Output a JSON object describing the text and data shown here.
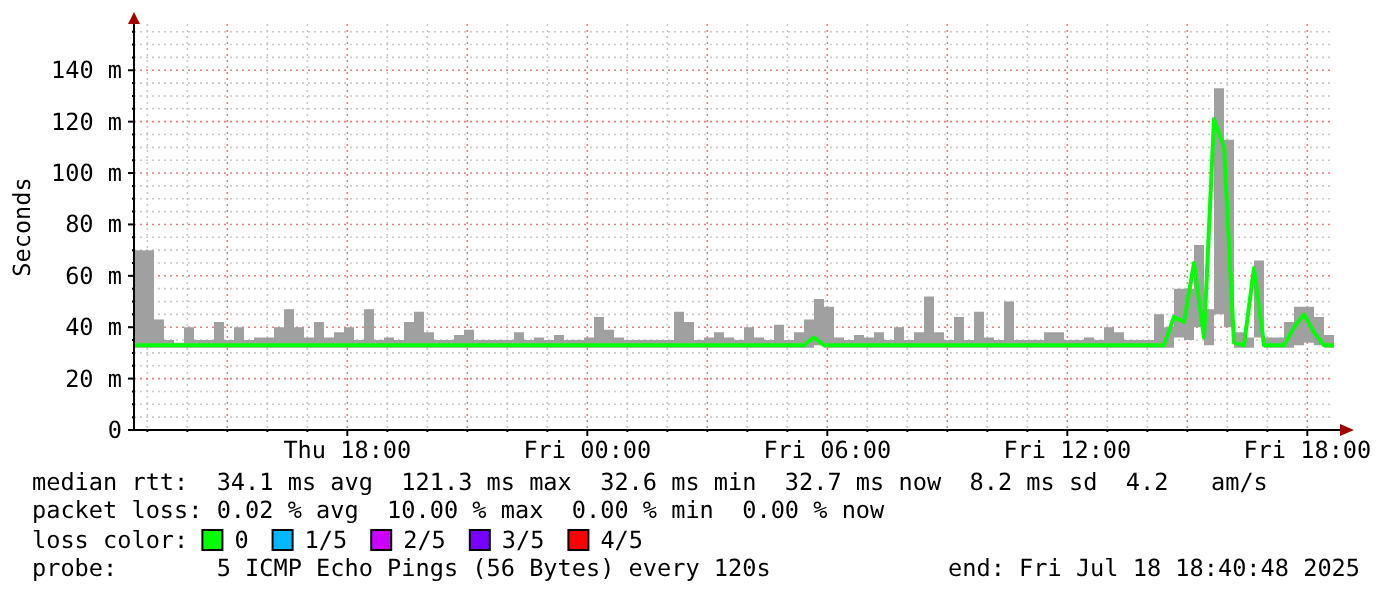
{
  "chart_data": {
    "type": "line",
    "ylabel": "Seconds",
    "legend_title": "loss color:",
    "legend": "bottom",
    "grid": true,
    "marker": "none",
    "line_style": "solid",
    "xlim": [
      "2025-07-17T12:40",
      "2025-07-18T18:40"
    ],
    "ylim": [
      0,
      158
    ],
    "yticks": [
      0,
      {
        "value": 5,
        "label": null
      },
      {
        "value": 10,
        "label": null
      },
      {
        "value": 15,
        "label": null
      },
      {
        "value": 20,
        "label": "20 m"
      },
      {
        "value": 25,
        "label": null
      },
      {
        "value": 30,
        "label": null
      },
      {
        "value": 35,
        "label": null
      },
      {
        "value": 40,
        "label": "40 m"
      },
      {
        "value": 45,
        "label": null
      },
      {
        "value": 50,
        "label": null
      },
      {
        "value": 55,
        "label": null
      },
      {
        "value": 60,
        "label": "60 m"
      },
      {
        "value": 65,
        "label": null
      },
      {
        "value": 70,
        "label": null
      },
      {
        "value": 75,
        "label": null
      },
      {
        "value": 80,
        "label": "80 m"
      },
      {
        "value": 85,
        "label": null
      },
      {
        "value": 90,
        "label": null
      },
      {
        "value": 95,
        "label": null
      },
      {
        "value": 100,
        "label": "100 m"
      },
      {
        "value": 105,
        "label": null
      },
      {
        "value": 110,
        "label": null
      },
      {
        "value": 115,
        "label": null
      },
      {
        "value": 120,
        "label": "120 m"
      },
      {
        "value": 125,
        "label": null
      },
      {
        "value": 130,
        "label": null
      },
      {
        "value": 135,
        "label": null
      },
      {
        "value": 140,
        "label": "140 m"
      },
      {
        "value": 145,
        "label": null
      },
      {
        "value": 150,
        "label": null
      },
      {
        "value": 155,
        "label": null
      }
    ],
    "xticks": [
      {
        "value": "2025-07-17T13:00",
        "label": null
      },
      {
        "value": "2025-07-17T14:00",
        "label": null
      },
      {
        "value": "2025-07-17T15:00",
        "label": null
      },
      {
        "value": "2025-07-17T16:00",
        "label": null
      },
      {
        "value": "2025-07-17T17:00",
        "label": null
      },
      {
        "value": "2025-07-17T18:00",
        "label": "Thu 18:00"
      },
      {
        "value": "2025-07-17T19:00",
        "label": null
      },
      {
        "value": "2025-07-17T20:00",
        "label": null
      },
      {
        "value": "2025-07-17T21:00",
        "label": null
      },
      {
        "value": "2025-07-17T22:00",
        "label": null
      },
      {
        "value": "2025-07-17T23:00",
        "label": null
      },
      {
        "value": "2025-07-18T00:00",
        "label": "Fri 00:00"
      },
      {
        "value": "2025-07-18T01:00",
        "label": null
      },
      {
        "value": "2025-07-18T02:00",
        "label": null
      },
      {
        "value": "2025-07-18T03:00",
        "label": null
      },
      {
        "value": "2025-07-18T04:00",
        "label": null
      },
      {
        "value": "2025-07-18T05:00",
        "label": null
      },
      {
        "value": "2025-07-18T06:00",
        "label": "Fri 06:00"
      },
      {
        "value": "2025-07-18T07:00",
        "label": null
      },
      {
        "value": "2025-07-18T08:00",
        "label": null
      },
      {
        "value": "2025-07-18T09:00",
        "label": null
      },
      {
        "value": "2025-07-18T10:00",
        "label": null
      },
      {
        "value": "2025-07-18T11:00",
        "label": null
      },
      {
        "value": "2025-07-18T12:00",
        "label": "Fri 12:00"
      },
      {
        "value": "2025-07-18T13:00",
        "label": null
      },
      {
        "value": "2025-07-18T14:00",
        "label": null
      },
      {
        "value": "2025-07-18T15:00",
        "label": null
      },
      {
        "value": "2025-07-18T16:00",
        "label": null
      },
      {
        "value": "2025-07-18T17:00",
        "label": null
      },
      {
        "value": "2025-07-18T18:00",
        "label": "Fri 18:00"
      }
    ],
    "x": [
      "2025-07-17T12:40",
      "2025-07-17T12:55",
      "2025-07-17T13:10",
      "2025-07-17T13:25",
      "2025-07-17T13:40",
      "2025-07-17T13:55",
      "2025-07-17T14:10",
      "2025-07-17T14:25",
      "2025-07-17T14:40",
      "2025-07-17T14:55",
      "2025-07-17T15:10",
      "2025-07-17T15:25",
      "2025-07-17T15:40",
      "2025-07-17T15:55",
      "2025-07-17T16:10",
      "2025-07-17T16:25",
      "2025-07-17T16:40",
      "2025-07-17T16:55",
      "2025-07-17T17:10",
      "2025-07-17T17:25",
      "2025-07-17T17:40",
      "2025-07-17T17:55",
      "2025-07-17T18:10",
      "2025-07-17T18:25",
      "2025-07-17T18:40",
      "2025-07-17T18:55",
      "2025-07-17T19:10",
      "2025-07-17T19:25",
      "2025-07-17T19:40",
      "2025-07-17T19:55",
      "2025-07-17T20:10",
      "2025-07-17T20:25",
      "2025-07-17T20:40",
      "2025-07-17T20:55",
      "2025-07-17T21:10",
      "2025-07-17T21:25",
      "2025-07-17T21:40",
      "2025-07-17T21:55",
      "2025-07-17T22:10",
      "2025-07-17T22:25",
      "2025-07-17T22:40",
      "2025-07-17T22:55",
      "2025-07-17T23:10",
      "2025-07-17T23:25",
      "2025-07-17T23:40",
      "2025-07-17T23:55",
      "2025-07-18T00:10",
      "2025-07-18T00:25",
      "2025-07-18T00:40",
      "2025-07-18T00:55",
      "2025-07-18T01:10",
      "2025-07-18T01:25",
      "2025-07-18T01:40",
      "2025-07-18T01:55",
      "2025-07-18T02:10",
      "2025-07-18T02:25",
      "2025-07-18T02:40",
      "2025-07-18T02:55",
      "2025-07-18T03:10",
      "2025-07-18T03:25",
      "2025-07-18T03:40",
      "2025-07-18T03:55",
      "2025-07-18T04:10",
      "2025-07-18T04:25",
      "2025-07-18T04:40",
      "2025-07-18T04:55",
      "2025-07-18T05:10",
      "2025-07-18T05:25",
      "2025-07-18T05:40",
      "2025-07-18T05:55",
      "2025-07-18T06:10",
      "2025-07-18T06:25",
      "2025-07-18T06:40",
      "2025-07-18T06:55",
      "2025-07-18T07:10",
      "2025-07-18T07:25",
      "2025-07-18T07:40",
      "2025-07-18T07:55",
      "2025-07-18T08:10",
      "2025-07-18T08:25",
      "2025-07-18T08:40",
      "2025-07-18T08:55",
      "2025-07-18T09:10",
      "2025-07-18T09:25",
      "2025-07-18T09:40",
      "2025-07-18T09:55",
      "2025-07-18T10:10",
      "2025-07-18T10:25",
      "2025-07-18T10:40",
      "2025-07-18T10:55",
      "2025-07-18T11:10",
      "2025-07-18T11:25",
      "2025-07-18T11:40",
      "2025-07-18T11:55",
      "2025-07-18T12:10",
      "2025-07-18T12:25",
      "2025-07-18T12:40",
      "2025-07-18T12:55",
      "2025-07-18T13:10",
      "2025-07-18T13:25",
      "2025-07-18T13:40",
      "2025-07-18T13:55",
      "2025-07-18T14:10",
      "2025-07-18T14:25",
      "2025-07-18T14:40",
      "2025-07-18T14:55",
      "2025-07-18T15:10",
      "2025-07-18T15:25",
      "2025-07-18T15:40",
      "2025-07-18T15:55",
      "2025-07-18T16:10",
      "2025-07-18T16:25",
      "2025-07-18T16:40",
      "2025-07-18T16:55",
      "2025-07-18T17:10",
      "2025-07-18T17:25",
      "2025-07-18T17:40",
      "2025-07-18T17:55",
      "2025-07-18T18:10",
      "2025-07-18T18:25",
      "2025-07-18T18:40"
    ],
    "series": [
      {
        "name": "0",
        "color": "#00ff00",
        "values": [
          33,
          33,
          33,
          33,
          33,
          33,
          33,
          33,
          33,
          33,
          33,
          33,
          33,
          33,
          33,
          33,
          33,
          33,
          33,
          33,
          33,
          33,
          33,
          33,
          33,
          33,
          33,
          33,
          33,
          33,
          33,
          33,
          33,
          33,
          33,
          33,
          33,
          33,
          33,
          33,
          33,
          33,
          33,
          33,
          33,
          33,
          33,
          33,
          33,
          33,
          33,
          33,
          33,
          33,
          33,
          33,
          33,
          33,
          33,
          33,
          33,
          33,
          33,
          33,
          33,
          33,
          33,
          33,
          36,
          33,
          33,
          33,
          33,
          33,
          33,
          33,
          33,
          33,
          33,
          33,
          33,
          33,
          33,
          33,
          33,
          33,
          33,
          33,
          33,
          33,
          33,
          33,
          33,
          33,
          33,
          33,
          33,
          33,
          33,
          33,
          33,
          33,
          33,
          33,
          44,
          42,
          65,
          36,
          121,
          110,
          34,
          33,
          63,
          33,
          33,
          33,
          40,
          45,
          38,
          33,
          33
        ],
        "lower": [
          32,
          32,
          32,
          32,
          32,
          32,
          32,
          32,
          32,
          32,
          32,
          32,
          32,
          32,
          32,
          32,
          32,
          32,
          32,
          32,
          32,
          32,
          32,
          32,
          32,
          32,
          32,
          32,
          32,
          32,
          32,
          32,
          32,
          32,
          32,
          32,
          32,
          32,
          32,
          32,
          32,
          32,
          32,
          32,
          32,
          32,
          32,
          32,
          32,
          32,
          32,
          32,
          32,
          32,
          32,
          32,
          32,
          32,
          32,
          32,
          32,
          32,
          32,
          32,
          32,
          32,
          32,
          32,
          33,
          32,
          32,
          32,
          32,
          32,
          32,
          32,
          32,
          32,
          32,
          32,
          32,
          32,
          32,
          32,
          32,
          32,
          32,
          32,
          32,
          32,
          32,
          32,
          32,
          32,
          32,
          32,
          32,
          32,
          32,
          32,
          32,
          32,
          32,
          32,
          36,
          35,
          40,
          33,
          45,
          40,
          32,
          32,
          36,
          32,
          32,
          32,
          33,
          34,
          33,
          32,
          32
        ],
        "upper": [
          70,
          70,
          43,
          35,
          34,
          40,
          35,
          35,
          42,
          35,
          40,
          35,
          36,
          36,
          40,
          47,
          40,
          36,
          42,
          36,
          38,
          40,
          35,
          47,
          35,
          36,
          35,
          42,
          46,
          38,
          35,
          35,
          37,
          39,
          35,
          35,
          35,
          35,
          38,
          35,
          36,
          35,
          37,
          35,
          35,
          36,
          44,
          39,
          36,
          35,
          35,
          35,
          35,
          35,
          46,
          42,
          35,
          36,
          38,
          36,
          35,
          40,
          36,
          35,
          41,
          35,
          38,
          43,
          51,
          48,
          36,
          35,
          37,
          36,
          38,
          35,
          40,
          35,
          38,
          52,
          38,
          35,
          44,
          35,
          46,
          36,
          35,
          50,
          35,
          35,
          35,
          38,
          38,
          35,
          35,
          36,
          35,
          40,
          38,
          35,
          35,
          35,
          45,
          40,
          55,
          55,
          72,
          47,
          133,
          113,
          38,
          36,
          66,
          36,
          36,
          42,
          48,
          48,
          44,
          37,
          34
        ]
      },
      {
        "name": "1/5",
        "color": "#00b8ff",
        "values": [
          null,
          null,
          null,
          null,
          null,
          null,
          null,
          null,
          null,
          null,
          null,
          null,
          null,
          null,
          null,
          null,
          null,
          null,
          null,
          null,
          null,
          null,
          null,
          null,
          null,
          null,
          null,
          null,
          null,
          null,
          null,
          null,
          null,
          null,
          null,
          null,
          null,
          null,
          null,
          null,
          null,
          null,
          null,
          null,
          null,
          null,
          null,
          null,
          null,
          null,
          null,
          null,
          null,
          null,
          null,
          null,
          null,
          null,
          null,
          null,
          null,
          null,
          null,
          null,
          null,
          null,
          null,
          null,
          null,
          null,
          null,
          null,
          null,
          null,
          null,
          null,
          null,
          null,
          null,
          null,
          null,
          null,
          null,
          null,
          null,
          null,
          null,
          null,
          null,
          null,
          null,
          null,
          null,
          null,
          null,
          null,
          null,
          null,
          null,
          null,
          null,
          null,
          null,
          null,
          null,
          null,
          null,
          null,
          null,
          null,
          null,
          null,
          null,
          null,
          null,
          null,
          null,
          null,
          null,
          null,
          null
        ]
      },
      {
        "name": "2/5",
        "color": "#cc00ff",
        "values": [
          null,
          null,
          null,
          null,
          null,
          null,
          null,
          null,
          null,
          null,
          null,
          null,
          null,
          null,
          null,
          null,
          null,
          null,
          null,
          null,
          null,
          null,
          null,
          null,
          null,
          null,
          null,
          null,
          null,
          null,
          null,
          null,
          null,
          null,
          null,
          null,
          null,
          null,
          null,
          null,
          null,
          null,
          null,
          null,
          null,
          null,
          null,
          null,
          null,
          null,
          null,
          null,
          null,
          null,
          null,
          null,
          null,
          null,
          null,
          null,
          null,
          null,
          null,
          null,
          null,
          null,
          null,
          null,
          null,
          null,
          null,
          null,
          null,
          null,
          null,
          null,
          null,
          null,
          null,
          null,
          null,
          null,
          null,
          null,
          null,
          null,
          null,
          null,
          null,
          null,
          null,
          null,
          null,
          null,
          null,
          null,
          null,
          null,
          null,
          null,
          null,
          null,
          null,
          null,
          null,
          null,
          null,
          null,
          null,
          null,
          null,
          null,
          null,
          null,
          null,
          null,
          null,
          null,
          null,
          null,
          null
        ]
      },
      {
        "name": "3/5",
        "color": "#7700ff",
        "values": [
          null,
          null,
          null,
          null,
          null,
          null,
          null,
          null,
          null,
          null,
          null,
          null,
          null,
          null,
          null,
          null,
          null,
          null,
          null,
          null,
          null,
          null,
          null,
          null,
          null,
          null,
          null,
          null,
          null,
          null,
          null,
          null,
          null,
          null,
          null,
          null,
          null,
          null,
          null,
          null,
          null,
          null,
          null,
          null,
          null,
          null,
          null,
          null,
          null,
          null,
          null,
          null,
          null,
          null,
          null,
          null,
          null,
          null,
          null,
          null,
          null,
          null,
          null,
          null,
          null,
          null,
          null,
          null,
          null,
          null,
          null,
          null,
          null,
          null,
          null,
          null,
          null,
          null,
          null,
          null,
          null,
          null,
          null,
          null,
          null,
          null,
          null,
          null,
          null,
          null,
          null,
          null,
          null,
          null,
          null,
          null,
          null,
          null,
          null,
          null,
          null,
          null,
          null,
          null,
          null,
          null,
          null,
          null,
          null,
          null,
          null,
          null,
          null,
          null,
          null,
          null,
          null,
          null,
          null,
          null,
          null
        ]
      },
      {
        "name": "4/5",
        "color": "#ff0000",
        "values": [
          null,
          null,
          null,
          null,
          null,
          null,
          null,
          null,
          null,
          null,
          null,
          null,
          null,
          null,
          null,
          null,
          null,
          null,
          null,
          null,
          null,
          null,
          null,
          null,
          null,
          null,
          null,
          null,
          null,
          null,
          null,
          null,
          null,
          null,
          null,
          null,
          null,
          null,
          null,
          null,
          null,
          null,
          null,
          null,
          null,
          null,
          null,
          null,
          null,
          null,
          null,
          null,
          null,
          null,
          null,
          null,
          null,
          null,
          null,
          null,
          null,
          null,
          null,
          null,
          null,
          null,
          null,
          null,
          null,
          null,
          null,
          null,
          null,
          null,
          null,
          null,
          null,
          null,
          null,
          null,
          null,
          null,
          null,
          null,
          null,
          null,
          null,
          null,
          null,
          null,
          null,
          null,
          null,
          null,
          null,
          null,
          null,
          null,
          null,
          null,
          null,
          null,
          null,
          null,
          null,
          null,
          null,
          null,
          null,
          null,
          null,
          null,
          null,
          null,
          null,
          null,
          null,
          null,
          null,
          null,
          null
        ]
      }
    ],
    "annotations": [
      "median rtt:  34.1 ms avg  121.3 ms max  32.6 ms min  32.7 ms now  8.2 ms sd  4.2   am/s",
      "packet loss: 0.02 % avg  10.00 % max  0.00 % min  0.00 % now",
      "probe:       5 ICMP Echo Pings (56 Bytes) every 120s",
      "end: Fri Jul 18 18:40:48 2025"
    ]
  }
}
